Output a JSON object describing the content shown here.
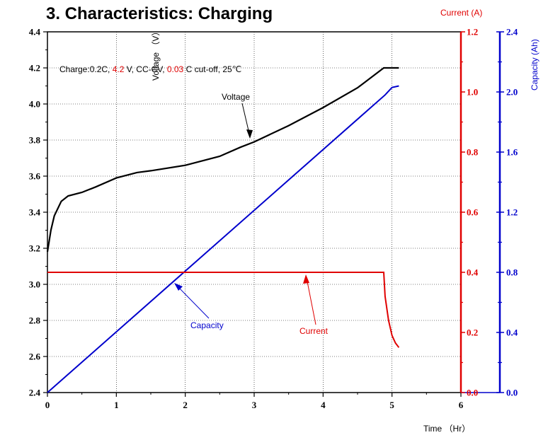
{
  "chart_data": {
    "type": "line",
    "title": "3. Characteristics: Charging",
    "condition": {
      "parts": [
        {
          "text": "Charge:0.2C, ",
          "color": "#000000"
        },
        {
          "text": "4.2",
          "color": "#e00000"
        },
        {
          "text": " V, CC-CV, ",
          "color": "#000000"
        },
        {
          "text": "0.03",
          "color": "#e00000"
        },
        {
          "text": " C cut-off, 25℃",
          "color": "#000000"
        }
      ]
    },
    "xlabel": "Time （Hr）",
    "ylabel_left": "Voltage （V）",
    "ylabel_right_current": "Current (A)",
    "ylabel_right_capacity": "Capacity (Ah)",
    "xlim": [
      0,
      6
    ],
    "ylim_voltage": [
      2.4,
      4.4
    ],
    "ylim_current": [
      0.0,
      1.2
    ],
    "ylim_capacity": [
      0.0,
      2.4
    ],
    "x_ticks": [
      "0",
      "1",
      "2",
      "3",
      "4",
      "5",
      "6"
    ],
    "voltage_ticks": [
      "2.4",
      "2.6",
      "2.8",
      "3.0",
      "3.2",
      "3.4",
      "3.6",
      "3.8",
      "4.0",
      "4.2",
      "4.4"
    ],
    "current_ticks": [
      "0.0",
      "0.2",
      "0.4",
      "0.6",
      "0.8",
      "1.0",
      "1.2"
    ],
    "capacity_ticks": [
      "0.0",
      "0.4",
      "0.8",
      "1.2",
      "1.6",
      "2.0",
      "2.4"
    ],
    "grid": true,
    "colors": {
      "voltage": "#000000",
      "current": "#e00000",
      "capacity": "#0000cc"
    },
    "annotations": {
      "voltage": "Voltage",
      "capacity": "Capacity",
      "current": "Current"
    },
    "series": [
      {
        "name": "Voltage",
        "axis": "voltage",
        "x": [
          0,
          0.05,
          0.1,
          0.2,
          0.3,
          0.5,
          0.7,
          1.0,
          1.3,
          1.5,
          2.0,
          2.5,
          2.8,
          3.0,
          3.5,
          4.0,
          4.5,
          4.88,
          5.0,
          5.1
        ],
        "y": [
          3.18,
          3.3,
          3.38,
          3.46,
          3.49,
          3.51,
          3.54,
          3.59,
          3.62,
          3.63,
          3.66,
          3.71,
          3.76,
          3.79,
          3.88,
          3.98,
          4.09,
          4.2,
          4.2,
          4.2
        ]
      },
      {
        "name": "Current",
        "axis": "current",
        "x": [
          0,
          4.88,
          4.9,
          4.95,
          5.0,
          5.05,
          5.1
        ],
        "y": [
          0.4,
          0.4,
          0.32,
          0.24,
          0.19,
          0.165,
          0.15
        ]
      },
      {
        "name": "Capacity",
        "axis": "capacity",
        "x": [
          0,
          4.9,
          5.0,
          5.1
        ],
        "y": [
          0.0,
          1.98,
          2.03,
          2.04
        ]
      }
    ]
  }
}
